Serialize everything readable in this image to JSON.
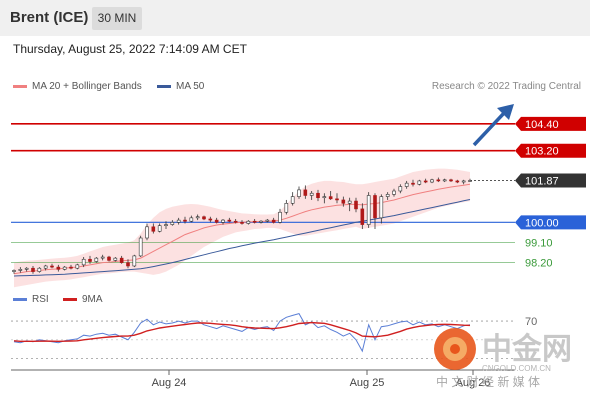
{
  "header": {
    "instrument": "Brent (ICE)",
    "timeframe": "30 MIN"
  },
  "timestamp": "Thursday, August 25, 2022 7:14:09 AM CET",
  "legend": {
    "ma20": {
      "label": "MA 20 + Bollinger Bands",
      "color": "#f08080"
    },
    "ma50": {
      "label": "MA 50",
      "color": "#3a5a9a"
    },
    "rsi": {
      "label": "RSI",
      "color": "#5b7fd6"
    },
    "ma9": {
      "label": "9MA",
      "color": "#d02020"
    }
  },
  "credit": "Research © 2022 Trading Central",
  "watermark": {
    "name": "中金网",
    "domain": "CNGOLD.COM.CN",
    "tagline": "中 文 财 经 新 媒 体"
  },
  "chart_data": {
    "type": "candlestick",
    "x_labels": [
      "Aug 24",
      "Aug 25",
      "Aug 26"
    ],
    "price_levels": [
      {
        "value": "104.40",
        "kind": "resistance",
        "color": "#d00000"
      },
      {
        "value": "103.20",
        "kind": "resistance",
        "color": "#d00000"
      },
      {
        "value": "101.87",
        "kind": "current",
        "color": "#333333"
      },
      {
        "value": "100.00",
        "kind": "pivot",
        "color": "#2a62d8"
      },
      {
        "value": "99.10",
        "kind": "support",
        "color": "#3a9a3a"
      },
      {
        "value": "98.20",
        "kind": "support",
        "color": "#3a9a3a"
      }
    ],
    "price_range": [
      97.2,
      105.6
    ],
    "candles": [
      [
        97.8,
        97.9,
        97.7,
        97.85
      ],
      [
        97.85,
        98.0,
        97.75,
        97.9
      ],
      [
        97.9,
        98.0,
        97.8,
        97.95
      ],
      [
        97.95,
        98.05,
        97.7,
        97.8
      ],
      [
        97.8,
        98.0,
        97.75,
        97.95
      ],
      [
        97.95,
        98.1,
        97.85,
        98.05
      ],
      [
        98.05,
        98.15,
        97.95,
        98.0
      ],
      [
        98.0,
        98.1,
        97.8,
        97.9
      ],
      [
        97.9,
        98.05,
        97.85,
        98.0
      ],
      [
        98.0,
        98.1,
        97.9,
        97.95
      ],
      [
        97.95,
        98.15,
        97.9,
        98.1
      ],
      [
        98.1,
        98.45,
        98.0,
        98.35
      ],
      [
        98.35,
        98.5,
        98.15,
        98.25
      ],
      [
        98.25,
        98.45,
        98.2,
        98.4
      ],
      [
        98.4,
        98.55,
        98.3,
        98.45
      ],
      [
        98.45,
        98.5,
        98.25,
        98.3
      ],
      [
        98.3,
        98.45,
        98.25,
        98.4
      ],
      [
        98.4,
        98.5,
        98.15,
        98.2
      ],
      [
        98.2,
        98.35,
        97.95,
        98.05
      ],
      [
        98.05,
        98.55,
        98.0,
        98.5
      ],
      [
        98.5,
        99.4,
        98.45,
        99.3
      ],
      [
        99.3,
        99.95,
        99.2,
        99.8
      ],
      [
        99.8,
        99.95,
        99.5,
        99.6
      ],
      [
        99.6,
        99.95,
        99.55,
        99.85
      ],
      [
        99.85,
        100.05,
        99.7,
        99.9
      ],
      [
        99.9,
        100.1,
        99.85,
        100.0
      ],
      [
        100.0,
        100.2,
        99.9,
        100.1
      ],
      [
        100.1,
        100.25,
        99.95,
        100.05
      ],
      [
        100.05,
        100.3,
        100.0,
        100.2
      ],
      [
        100.2,
        100.35,
        100.1,
        100.25
      ],
      [
        100.25,
        100.3,
        100.1,
        100.15
      ],
      [
        100.15,
        100.25,
        100.0,
        100.1
      ],
      [
        100.1,
        100.2,
        99.95,
        100.0
      ],
      [
        100.0,
        100.15,
        99.9,
        100.1
      ],
      [
        100.1,
        100.2,
        100.0,
        100.05
      ],
      [
        100.05,
        100.15,
        99.95,
        100.0
      ],
      [
        100.0,
        100.1,
        99.9,
        99.95
      ],
      [
        99.95,
        100.1,
        99.9,
        100.05
      ],
      [
        100.05,
        100.15,
        99.95,
        100.0
      ],
      [
        100.0,
        100.1,
        99.95,
        100.05
      ],
      [
        100.05,
        100.15,
        100.0,
        100.1
      ],
      [
        100.1,
        100.2,
        99.95,
        100.0
      ],
      [
        100.0,
        100.6,
        99.95,
        100.45
      ],
      [
        100.45,
        101.0,
        100.35,
        100.85
      ],
      [
        100.85,
        101.35,
        100.75,
        101.15
      ],
      [
        101.15,
        101.6,
        101.05,
        101.45
      ],
      [
        101.45,
        101.65,
        101.05,
        101.2
      ],
      [
        101.2,
        101.4,
        101.0,
        101.3
      ],
      [
        101.3,
        101.45,
        100.95,
        101.1
      ],
      [
        101.1,
        101.3,
        100.85,
        101.15
      ],
      [
        101.15,
        101.4,
        101.0,
        101.05
      ],
      [
        101.05,
        101.3,
        100.85,
        101.0
      ],
      [
        101.0,
        101.15,
        100.7,
        100.85
      ],
      [
        100.85,
        101.1,
        100.5,
        100.95
      ],
      [
        100.95,
        101.1,
        100.45,
        100.6
      ],
      [
        100.6,
        100.85,
        99.7,
        99.9
      ],
      [
        99.9,
        101.35,
        99.75,
        101.2
      ],
      [
        101.2,
        101.3,
        99.7,
        100.2
      ],
      [
        100.2,
        101.25,
        99.95,
        101.15
      ],
      [
        101.15,
        101.35,
        101.0,
        101.25
      ],
      [
        101.25,
        101.5,
        101.15,
        101.4
      ],
      [
        101.4,
        101.7,
        101.3,
        101.6
      ],
      [
        101.6,
        101.85,
        101.5,
        101.75
      ],
      [
        101.75,
        101.9,
        101.6,
        101.7
      ],
      [
        101.7,
        101.9,
        101.65,
        101.85
      ],
      [
        101.85,
        101.95,
        101.75,
        101.8
      ],
      [
        101.8,
        101.95,
        101.75,
        101.9
      ],
      [
        101.9,
        102.0,
        101.8,
        101.85
      ],
      [
        101.85,
        101.95,
        101.8,
        101.9
      ],
      [
        101.9,
        101.95,
        101.8,
        101.85
      ],
      [
        101.85,
        101.9,
        101.75,
        101.8
      ],
      [
        101.8,
        101.9,
        101.7,
        101.85
      ],
      [
        101.85,
        101.95,
        101.8,
        101.87
      ]
    ],
    "ma20": [
      97.7,
      97.75,
      97.8,
      97.82,
      97.85,
      97.88,
      97.9,
      97.92,
      97.95,
      97.98,
      98.0,
      98.05,
      98.1,
      98.15,
      98.2,
      98.22,
      98.25,
      98.28,
      98.3,
      98.32,
      98.4,
      98.55,
      98.7,
      98.85,
      99.0,
      99.15,
      99.3,
      99.45,
      99.55,
      99.65,
      99.75,
      99.82,
      99.88,
      99.92,
      99.95,
      99.98,
      100.0,
      100.02,
      100.03,
      100.04,
      100.05,
      100.06,
      100.1,
      100.18,
      100.28,
      100.38,
      100.48,
      100.56,
      100.62,
      100.68,
      100.72,
      100.76,
      100.78,
      100.8,
      100.8,
      100.78,
      100.82,
      100.84,
      100.88,
      100.94,
      101.0,
      101.08,
      101.16,
      101.24,
      101.3,
      101.36,
      101.42,
      101.48,
      101.53,
      101.58,
      101.62,
      101.66,
      101.7
    ],
    "bb_upper": [
      98.2,
      98.25,
      98.28,
      98.3,
      98.32,
      98.35,
      98.38,
      98.4,
      98.42,
      98.45,
      98.5,
      98.6,
      98.7,
      98.8,
      98.9,
      98.95,
      99.0,
      99.05,
      99.1,
      99.2,
      99.5,
      99.9,
      100.2,
      100.45,
      100.6,
      100.7,
      100.75,
      100.8,
      100.82,
      100.8,
      100.75,
      100.7,
      100.62,
      100.55,
      100.5,
      100.45,
      100.4,
      100.38,
      100.36,
      100.35,
      100.35,
      100.36,
      100.5,
      100.8,
      101.1,
      101.4,
      101.6,
      101.72,
      101.8,
      101.85,
      101.85,
      101.82,
      101.8,
      101.75,
      101.7,
      101.7,
      101.75,
      101.8,
      101.85,
      101.9,
      101.95,
      102.05,
      102.15,
      102.25,
      102.3,
      102.35,
      102.38,
      102.4,
      102.4,
      102.38,
      102.35,
      102.3,
      102.25
    ],
    "bb_lower": [
      97.1,
      97.15,
      97.2,
      97.25,
      97.3,
      97.35,
      97.38,
      97.4,
      97.42,
      97.45,
      97.5,
      97.55,
      97.6,
      97.65,
      97.7,
      97.72,
      97.75,
      97.78,
      97.8,
      97.8,
      97.75,
      97.7,
      97.65,
      97.7,
      97.8,
      97.95,
      98.1,
      98.3,
      98.5,
      98.7,
      98.9,
      99.05,
      99.2,
      99.35,
      99.45,
      99.55,
      99.6,
      99.65,
      99.7,
      99.72,
      99.75,
      99.75,
      99.7,
      99.6,
      99.5,
      99.4,
      99.4,
      99.45,
      99.5,
      99.55,
      99.6,
      99.65,
      99.7,
      99.75,
      99.8,
      99.7,
      99.75,
      99.8,
      99.85,
      99.9,
      99.95,
      100.05,
      100.15,
      100.25,
      100.35,
      100.45,
      100.55,
      100.65,
      100.72,
      100.78,
      100.85,
      100.9,
      100.95
    ],
    "ma50": [
      97.6,
      97.61,
      97.62,
      97.63,
      97.64,
      97.65,
      97.66,
      97.67,
      97.68,
      97.7,
      97.72,
      97.74,
      97.76,
      97.78,
      97.8,
      97.82,
      97.84,
      97.86,
      97.88,
      97.9,
      97.93,
      97.97,
      98.02,
      98.08,
      98.14,
      98.2,
      98.27,
      98.34,
      98.41,
      98.48,
      98.55,
      98.62,
      98.69,
      98.76,
      98.83,
      98.89,
      98.95,
      99.01,
      99.07,
      99.12,
      99.17,
      99.22,
      99.28,
      99.34,
      99.4,
      99.46,
      99.52,
      99.58,
      99.64,
      99.7,
      99.76,
      99.82,
      99.88,
      99.94,
      100.0,
      100.05,
      100.1,
      100.15,
      100.2,
      100.25,
      100.3,
      100.36,
      100.42,
      100.48,
      100.54,
      100.6,
      100.66,
      100.72,
      100.78,
      100.84,
      100.9,
      100.96,
      101.02
    ],
    "rsi_levels": [
      "70"
    ],
    "rsi_range": [
      20,
      85
    ],
    "rsi": [
      48,
      47,
      49,
      48,
      50,
      49,
      48,
      47,
      49,
      50,
      51,
      55,
      54,
      56,
      57,
      55,
      56,
      53,
      50,
      58,
      68,
      72,
      66,
      69,
      67,
      68,
      70,
      68,
      70,
      70,
      66,
      64,
      62,
      65,
      63,
      61,
      59,
      63,
      61,
      63,
      64,
      60,
      70,
      74,
      76,
      78,
      66,
      69,
      63,
      65,
      61,
      58,
      54,
      57,
      50,
      38,
      66,
      50,
      64,
      65,
      67,
      69,
      70,
      66,
      69,
      66,
      67,
      64,
      66,
      64,
      62,
      65,
      66
    ],
    "rsi_ma": [
      49,
      48.5,
      48.5,
      48.4,
      48.6,
      48.7,
      48.6,
      48.4,
      48.6,
      48.8,
      49,
      50,
      50.8,
      51.6,
      52.4,
      53,
      53.6,
      54,
      54,
      55,
      57,
      59.5,
      61,
      62.6,
      63.6,
      64.5,
      65.5,
      66.4,
      67.2,
      68,
      68,
      67.6,
      67,
      66.5,
      66,
      65.2,
      64,
      63.2,
      62.6,
      62.4,
      62.2,
      62,
      62.8,
      64,
      65.6,
      67.4,
      68,
      68.4,
      68,
      67.6,
      66,
      64,
      62,
      60,
      57.4,
      54,
      53.6,
      53.2,
      54,
      55,
      57,
      59,
      61.4,
      63,
      64.4,
      65.2,
      66,
      66.4,
      66.6,
      66.4,
      66,
      65.6,
      65.4
    ]
  }
}
